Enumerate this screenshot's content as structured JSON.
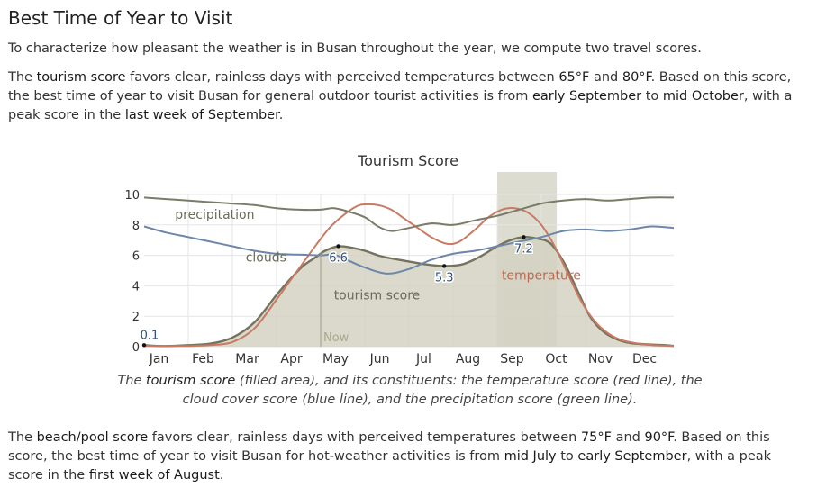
{
  "section": {
    "heading": "Best Time of Year to Visit",
    "intro": "To characterize how pleasant the weather is in Busan throughout the year, we compute two travel scores.",
    "tourism_paragraph": {
      "part1": "The ",
      "term": "tourism score",
      "part2": " favors clear, rainless days with perceived temperatures between ",
      "t_low": "65°F",
      "part3": " and ",
      "t_high": "80°F",
      "part4": ". Based on this score, the best time of year to visit Busan for general outdoor tourist activities is from ",
      "start": "early September",
      "part5": " to ",
      "end": "mid October",
      "part6": ", with a peak score in the ",
      "peak": "last week of September",
      "part7": "."
    },
    "caption": {
      "part1": "The ",
      "term": "tourism score",
      "part2": " (filled area), and its constituents: the temperature score (red line), the cloud cover score (blue line), and the precipitation score (green line)."
    },
    "beach_paragraph": {
      "part1": "The ",
      "term": "beach/pool score",
      "part2": " favors clear, rainless days with perceived temperatures between ",
      "t_low": "75°F",
      "part3": " and ",
      "t_high": "90°F",
      "part4": ". Based on this score, the best time of year to visit Busan for hot-weather activities is from ",
      "start": "mid July",
      "part5": " to ",
      "end": "early September",
      "part6": ", with a peak score in the ",
      "peak": "first week of August",
      "part7": "."
    }
  },
  "chart_data": {
    "type": "area",
    "title": "Tourism Score",
    "x_categories": [
      "Jan",
      "Feb",
      "Mar",
      "Apr",
      "May",
      "Jun",
      "Jul",
      "Aug",
      "Sep",
      "Oct",
      "Nov",
      "Dec"
    ],
    "x_range": [
      0,
      12
    ],
    "y_range": [
      0,
      10
    ],
    "y_ticks": [
      0,
      2,
      4,
      6,
      8,
      10
    ],
    "grid": true,
    "highlight_band": [
      8,
      9.35
    ],
    "now_marker": {
      "x": 4.0,
      "label": "Now"
    },
    "series": [
      {
        "name": "tourism score",
        "role": "filled-area",
        "color": "#75735e",
        "fill": "#d2d1c1",
        "label_at": [
          4.3,
          3.1
        ],
        "x": [
          0,
          0.3,
          0.6,
          1,
          1.5,
          2,
          2.5,
          3,
          3.3,
          3.6,
          3.9,
          4.1,
          4.4,
          4.7,
          5,
          5.3,
          5.6,
          6,
          6.4,
          6.8,
          7.2,
          7.6,
          8,
          8.3,
          8.6,
          8.9,
          9.2,
          9.5,
          9.8,
          10.1,
          10.4,
          10.7,
          11,
          11.4,
          11.8,
          12
        ],
        "y": [
          0.1,
          0.05,
          0.05,
          0.1,
          0.2,
          0.6,
          1.6,
          3.4,
          4.4,
          5.3,
          5.9,
          6.3,
          6.6,
          6.5,
          6.3,
          6.0,
          5.8,
          5.6,
          5.4,
          5.3,
          5.4,
          5.9,
          6.6,
          7.0,
          7.2,
          7.1,
          6.8,
          5.6,
          3.8,
          2.0,
          1.0,
          0.5,
          0.25,
          0.15,
          0.1,
          0.05
        ]
      },
      {
        "name": "temperature",
        "role": "line",
        "color": "#c87a62",
        "label_at": [
          8.1,
          4.4
        ],
        "x": [
          0,
          0.5,
          1,
          1.5,
          2,
          2.5,
          3,
          3.3,
          3.6,
          3.9,
          4.2,
          4.5,
          4.8,
          5,
          5.3,
          5.6,
          5.9,
          6.2,
          6.5,
          6.8,
          7,
          7.2,
          7.5,
          7.8,
          8.1,
          8.4,
          8.7,
          9,
          9.3,
          9.6,
          9.9,
          10.2,
          10.5,
          10.8,
          11.1,
          11.5,
          12
        ],
        "y": [
          0.05,
          0.05,
          0.05,
          0.1,
          0.3,
          1.2,
          3.1,
          4.3,
          5.5,
          6.7,
          7.8,
          8.6,
          9.2,
          9.35,
          9.3,
          9.0,
          8.4,
          7.8,
          7.2,
          6.8,
          6.75,
          7.0,
          7.7,
          8.5,
          9.0,
          9.1,
          8.8,
          8.0,
          6.6,
          4.8,
          3.0,
          1.7,
          0.9,
          0.45,
          0.25,
          0.1,
          0.05
        ]
      },
      {
        "name": "clouds",
        "role": "line",
        "color": "#6e87a8",
        "label_at": [
          2.3,
          5.6
        ],
        "x": [
          0,
          0.5,
          1,
          1.5,
          2,
          2.5,
          3,
          3.5,
          4,
          4.3,
          4.6,
          5,
          5.5,
          6,
          6.5,
          7,
          7.5,
          8,
          8.5,
          9,
          9.5,
          10,
          10.5,
          11,
          11.5,
          12
        ],
        "y": [
          7.9,
          7.5,
          7.2,
          6.9,
          6.6,
          6.3,
          6.1,
          6.05,
          6.0,
          6.05,
          5.7,
          5.2,
          4.8,
          5.1,
          5.7,
          6.1,
          6.3,
          6.6,
          6.9,
          7.2,
          7.6,
          7.7,
          7.6,
          7.7,
          7.9,
          7.8
        ]
      },
      {
        "name": "precipitation",
        "role": "line",
        "color": "#7b7b69",
        "label_at": [
          0.7,
          8.4
        ],
        "x": [
          0,
          0.5,
          1,
          1.5,
          2,
          2.5,
          3,
          3.5,
          4,
          4.3,
          4.6,
          5,
          5.3,
          5.6,
          6,
          6.5,
          7,
          7.5,
          8,
          8.5,
          9,
          9.5,
          10,
          10.5,
          11,
          11.5,
          12
        ],
        "y": [
          9.8,
          9.7,
          9.6,
          9.5,
          9.4,
          9.3,
          9.1,
          9.0,
          9.0,
          9.1,
          8.9,
          8.5,
          7.9,
          7.6,
          7.8,
          8.1,
          8.0,
          8.3,
          8.6,
          9.0,
          9.4,
          9.6,
          9.7,
          9.6,
          9.7,
          9.8,
          9.8
        ]
      }
    ],
    "annotations": [
      {
        "x": 0.0,
        "y": 0.1,
        "text": "0.1"
      },
      {
        "x": 4.4,
        "y": 6.6,
        "text": "6.6"
      },
      {
        "x": 6.8,
        "y": 5.3,
        "text": "5.3"
      },
      {
        "x": 8.6,
        "y": 7.2,
        "text": "7.2"
      }
    ]
  }
}
